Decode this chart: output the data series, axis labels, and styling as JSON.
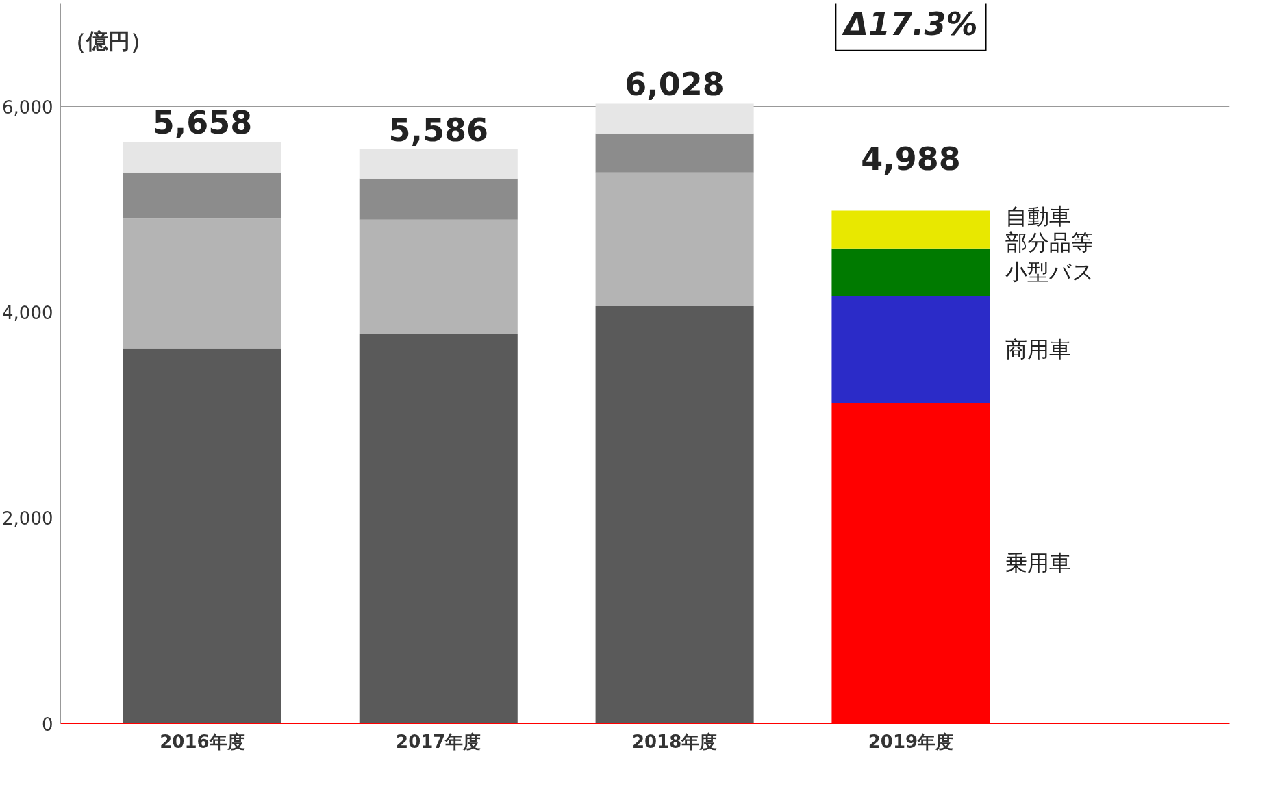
{
  "chart_data": {
    "type": "bar",
    "stacked": true,
    "ylabel": "（億円）",
    "categories": [
      "2016年度",
      "2017年度",
      "2018年度",
      "2019年度"
    ],
    "series": [
      {
        "name": "乗用車",
        "colors": [
          "#5a5a5a",
          "#5a5a5a",
          "#5a5a5a",
          "#ff0000"
        ],
        "values": [
          3650,
          3790,
          4060,
          3120
        ]
      },
      {
        "name": "商用車",
        "colors": [
          "#b4b4b4",
          "#b4b4b4",
          "#b4b4b4",
          "#2b2bc8"
        ],
        "values": [
          1260,
          1110,
          1300,
          1040
        ]
      },
      {
        "name": "小型バス",
        "colors": [
          "#8c8c8c",
          "#8c8c8c",
          "#8c8c8c",
          "#007a00"
        ],
        "values": [
          450,
          400,
          380,
          460
        ]
      },
      {
        "name": "自動車部分品等",
        "colors": [
          "#e6e6e6",
          "#e6e6e6",
          "#e6e6e6",
          "#e8e800"
        ],
        "values": [
          298,
          286,
          288,
          368
        ]
      }
    ],
    "totals": [
      "5,658",
      "5,586",
      "6,028",
      "4,988"
    ],
    "annotations": [
      "Δ17.3%"
    ],
    "ylim": [
      0,
      7000
    ],
    "yticks": [
      0,
      {
        "value": 2000,
        "label": "2,000"
      },
      {
        "value": 4000,
        "label": "4,000"
      },
      {
        "value": 6000,
        "label": "6,000"
      }
    ],
    "grid": "y"
  }
}
